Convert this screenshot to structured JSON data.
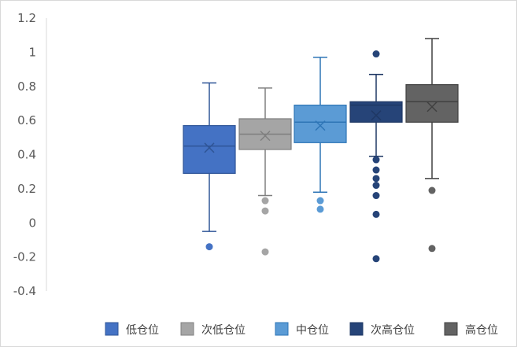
{
  "chart_data": {
    "type": "boxplot",
    "title": "",
    "xlabel": "",
    "ylabel": "",
    "ylim": [
      -0.4,
      1.2
    ],
    "yticks": [
      -0.4,
      -0.2,
      0,
      0.2,
      0.4,
      0.6,
      0.8,
      1,
      1.2
    ],
    "ytick_labels": [
      "-0.4",
      "-0.2",
      "0",
      "0.2",
      "0.4",
      "0.6",
      "0.8",
      "1",
      "1.2"
    ],
    "grid": false,
    "legend_position": "bottom-right",
    "series": [
      {
        "name": "低仓位",
        "color": "#4472C4",
        "edge_color": "#2F5597",
        "whisker_low": -0.05,
        "q1": 0.29,
        "median": 0.45,
        "q3": 0.57,
        "whisker_high": 0.82,
        "mean": 0.44,
        "outliers": [
          -0.14
        ]
      },
      {
        "name": "次低仓位",
        "color": "#A5A5A5",
        "edge_color": "#7F7F7F",
        "whisker_low": 0.16,
        "q1": 0.43,
        "median": 0.52,
        "q3": 0.61,
        "whisker_high": 0.79,
        "mean": 0.51,
        "outliers": [
          0.13,
          0.07,
          -0.17
        ]
      },
      {
        "name": "中仓位",
        "color": "#5B9BD5",
        "edge_color": "#2E75B6",
        "whisker_low": 0.18,
        "q1": 0.47,
        "median": 0.59,
        "q3": 0.69,
        "whisker_high": 0.97,
        "mean": 0.57,
        "outliers": [
          0.13,
          0.08
        ]
      },
      {
        "name": "次高仓位",
        "color": "#264478",
        "edge_color": "#1F3864",
        "whisker_low": 0.39,
        "q1": 0.59,
        "median": 0.69,
        "q3": 0.71,
        "whisker_high": 0.87,
        "mean": 0.63,
        "outliers": [
          0.99,
          0.37,
          0.31,
          0.26,
          0.22,
          0.16,
          0.05,
          -0.21
        ]
      },
      {
        "name": "高仓位",
        "color": "#636363",
        "edge_color": "#404040",
        "whisker_low": 0.26,
        "q1": 0.59,
        "median": 0.71,
        "q3": 0.81,
        "whisker_high": 1.08,
        "mean": 0.68,
        "outliers": [
          0.19,
          -0.15
        ]
      }
    ]
  }
}
